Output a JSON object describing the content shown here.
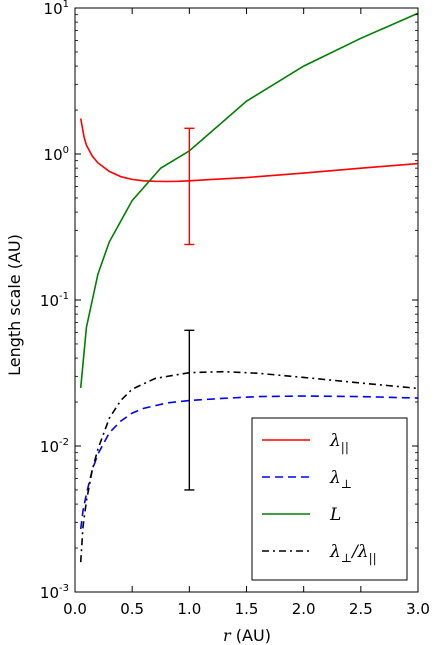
{
  "chart_data": {
    "type": "line",
    "title": "",
    "xlabel": "r (AU)",
    "xlabel_var": "r",
    "xlabel_unit": "(AU)",
    "ylabel": "Length scale (AU)",
    "xlim": [
      0.0,
      3.0
    ],
    "ylim": [
      0.001,
      10
    ],
    "yscale": "log",
    "grid": false,
    "legend_position": "lower-right",
    "x_ticks": [
      {
        "value": 0.0,
        "label": "0.0"
      },
      {
        "value": 0.5,
        "label": "0.5"
      },
      {
        "value": 1.0,
        "label": "1.0"
      },
      {
        "value": 1.5,
        "label": "1.5"
      },
      {
        "value": 2.0,
        "label": "2.0"
      },
      {
        "value": 2.5,
        "label": "2.5"
      },
      {
        "value": 3.0,
        "label": "3.0"
      }
    ],
    "y_ticks": [
      {
        "value": 0.001,
        "base": "10",
        "exp": "-3"
      },
      {
        "value": 0.01,
        "base": "10",
        "exp": "-2"
      },
      {
        "value": 0.1,
        "base": "10",
        "exp": "-1"
      },
      {
        "value": 1,
        "base": "10",
        "exp": "0"
      },
      {
        "value": 10,
        "base": "10",
        "exp": "1"
      }
    ],
    "series": [
      {
        "name": "λ∥",
        "legend_main": "λ",
        "legend_sub": "||",
        "color": "#ff0000",
        "style": "solid",
        "x": [
          0.05,
          0.08,
          0.1,
          0.15,
          0.2,
          0.3,
          0.4,
          0.5,
          0.6,
          0.7,
          0.8,
          0.9,
          1.0,
          1.2,
          1.5,
          2.0,
          2.5,
          3.0
        ],
        "y": [
          1.75,
          1.3,
          1.15,
          0.97,
          0.87,
          0.76,
          0.7,
          0.67,
          0.655,
          0.65,
          0.648,
          0.65,
          0.655,
          0.67,
          0.69,
          0.74,
          0.8,
          0.86
        ]
      },
      {
        "name": "λ⊥",
        "legend_main": "λ",
        "legend_sub": "⊥",
        "color": "#0000ff",
        "style": "dashed",
        "x": [
          0.05,
          0.07,
          0.1,
          0.15,
          0.2,
          0.3,
          0.4,
          0.5,
          0.6,
          0.8,
          1.0,
          1.3,
          1.6,
          2.0,
          2.5,
          3.0
        ],
        "y": [
          0.0027,
          0.0036,
          0.0047,
          0.0068,
          0.0088,
          0.0123,
          0.0148,
          0.0168,
          0.0181,
          0.0197,
          0.0205,
          0.0212,
          0.0218,
          0.022,
          0.0218,
          0.0213
        ]
      },
      {
        "name": "L",
        "legend_main": "L",
        "legend_sub": "",
        "color": "#008000",
        "style": "solid",
        "x": [
          0.05,
          0.1,
          0.2,
          0.3,
          0.5,
          0.75,
          1.0,
          1.5,
          2.0,
          2.5,
          3.0
        ],
        "y": [
          0.025,
          0.065,
          0.15,
          0.25,
          0.48,
          0.8,
          1.05,
          2.3,
          4.0,
          6.2,
          9.2
        ]
      },
      {
        "name": "λ⊥/λ∥",
        "legend_main": "λ",
        "legend_sub": "⊥",
        "legend_main2": "/λ",
        "legend_sub2": "||",
        "color": "#000000",
        "style": "dashdot",
        "x": [
          0.05,
          0.07,
          0.1,
          0.15,
          0.2,
          0.3,
          0.4,
          0.5,
          0.7,
          1.0,
          1.3,
          1.6,
          2.0,
          2.5,
          3.0
        ],
        "y": [
          0.0016,
          0.0028,
          0.0042,
          0.0068,
          0.0095,
          0.0155,
          0.0205,
          0.0245,
          0.029,
          0.0318,
          0.0323,
          0.0315,
          0.0295,
          0.027,
          0.0248
        ]
      }
    ],
    "error_bars": [
      {
        "x": 1.0,
        "y": 1.0,
        "low": 0.24,
        "high": 1.5,
        "color": "#ff0000"
      },
      {
        "x": 1.0,
        "y": 0.02,
        "low": 0.005,
        "high": 0.062,
        "color": "#000000"
      }
    ]
  }
}
